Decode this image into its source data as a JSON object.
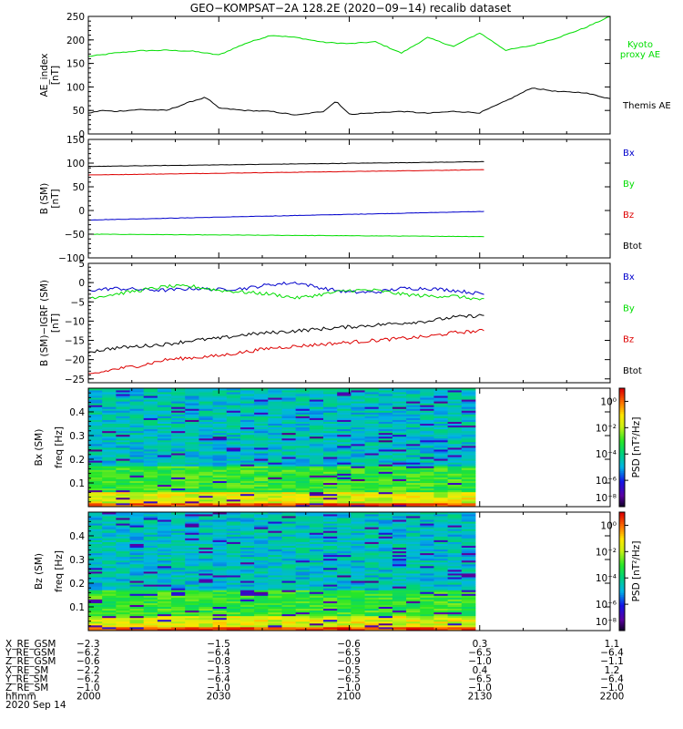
{
  "title": "GEO−KOMPSAT−2A 128.2E (2020−09−14) recalib dataset",
  "colors": {
    "black": "#000000",
    "blue": "#0000cc",
    "green": "#00dd00",
    "red": "#dd0000"
  },
  "chart_data": [
    {
      "type": "line",
      "panel": "ae",
      "ylabel": "AE_index",
      "yunit": "[nT]",
      "ylim": [
        0,
        250
      ],
      "yticks": [
        "0",
        "50",
        "100",
        "150",
        "200",
        "250"
      ],
      "xlim": [
        "20:00",
        "22:00"
      ],
      "series": [
        {
          "name": "Kyoto proxy AE",
          "label_lines": [
            "Kyoto",
            "proxy AE"
          ],
          "color": "#00dd00",
          "x": [
            "20:00",
            "20:03",
            "20:06",
            "20:12",
            "20:18",
            "20:24",
            "20:30",
            "20:36",
            "20:42",
            "20:48",
            "20:54",
            "21:00",
            "21:06",
            "21:12",
            "21:18",
            "21:24",
            "21:30",
            "21:36",
            "21:42",
            "21:48",
            "21:54",
            "22:00"
          ],
          "y": [
            165,
            168,
            172,
            177,
            178,
            176,
            168,
            192,
            210,
            205,
            195,
            192,
            196,
            172,
            205,
            186,
            215,
            178,
            188,
            205,
            225,
            250
          ]
        },
        {
          "name": "Themis AE",
          "label_lines": [
            "Themis AE"
          ],
          "color": "#000000",
          "x": [
            "20:00",
            "20:03",
            "20:06",
            "20:12",
            "20:18",
            "20:24",
            "20:27",
            "20:30",
            "20:36",
            "20:42",
            "20:48",
            "20:54",
            "20:57",
            "21:00",
            "21:06",
            "21:12",
            "21:18",
            "21:24",
            "21:30",
            "21:36",
            "21:42",
            "21:48",
            "21:54",
            "22:00"
          ],
          "y": [
            44,
            50,
            48,
            52,
            50,
            70,
            78,
            55,
            50,
            48,
            40,
            48,
            70,
            42,
            45,
            48,
            44,
            48,
            45,
            70,
            98,
            90,
            88,
            75
          ]
        }
      ]
    },
    {
      "type": "line",
      "panel": "b_sm",
      "ylabel": "B (SM)",
      "yunit": "[nT]",
      "ylim": [
        -100,
        150
      ],
      "yticks": [
        "−100",
        "−50",
        "0",
        "50",
        "100",
        "150"
      ],
      "xlim": [
        "20:00",
        "22:00"
      ],
      "series": [
        {
          "name": "Bx",
          "color": "#0000cc",
          "x": [
            "20:00",
            "21:31"
          ],
          "y": [
            -20,
            -2
          ]
        },
        {
          "name": "By",
          "color": "#00dd00",
          "x": [
            "20:00",
            "21:31"
          ],
          "y": [
            -50,
            -55
          ]
        },
        {
          "name": "Bz",
          "color": "#dd0000",
          "x": [
            "20:00",
            "21:31"
          ],
          "y": [
            75,
            86
          ]
        },
        {
          "name": "Btot",
          "color": "#000000",
          "x": [
            "20:00",
            "21:31"
          ],
          "y": [
            93,
            103
          ]
        }
      ]
    },
    {
      "type": "line",
      "panel": "b_igrf",
      "ylabel": "B (SM)−IGRF (SM)",
      "yunit": "[nT]",
      "ylim": [
        -26,
        5
      ],
      "yticks": [
        "−25",
        "−20",
        "−15",
        "−10",
        "−5",
        "0",
        "5"
      ],
      "xlim": [
        "20:00",
        "22:00"
      ],
      "series": [
        {
          "name": "Bx",
          "color": "#0000cc",
          "x": [
            "20:00",
            "20:06",
            "20:12",
            "20:18",
            "20:24",
            "20:30",
            "20:36",
            "20:42",
            "20:48",
            "20:54",
            "21:00",
            "21:06",
            "21:12",
            "21:18",
            "21:24",
            "21:31"
          ],
          "y": [
            -2,
            -1.5,
            -1.8,
            -2,
            -1.5,
            -1.8,
            -1.5,
            -0.5,
            0,
            -1.5,
            -2.5,
            -2.5,
            -1.5,
            -1.5,
            -2,
            -3
          ]
        },
        {
          "name": "By",
          "color": "#00dd00",
          "x": [
            "20:00",
            "20:06",
            "20:12",
            "20:18",
            "20:24",
            "20:30",
            "20:36",
            "20:42",
            "20:48",
            "20:54",
            "21:00",
            "21:06",
            "21:12",
            "21:18",
            "21:24",
            "21:31"
          ],
          "y": [
            -4,
            -3,
            -2,
            -1,
            -1,
            -2,
            -2.5,
            -3,
            -4,
            -3,
            -2,
            -2,
            -3,
            -3.5,
            -3.5,
            -4.5
          ]
        },
        {
          "name": "Bz",
          "color": "#dd0000",
          "x": [
            "20:00",
            "20:06",
            "20:12",
            "20:18",
            "20:24",
            "20:30",
            "20:36",
            "20:42",
            "20:48",
            "20:54",
            "21:00",
            "21:06",
            "21:12",
            "21:18",
            "21:24",
            "21:31"
          ],
          "y": [
            -24,
            -22.5,
            -21.5,
            -20,
            -19.5,
            -19,
            -18,
            -17,
            -16.5,
            -16,
            -15.5,
            -15,
            -14.5,
            -14,
            -13,
            -12.5
          ]
        },
        {
          "name": "Btot",
          "color": "#000000",
          "x": [
            "20:00",
            "20:06",
            "20:12",
            "20:18",
            "20:24",
            "20:30",
            "20:36",
            "20:42",
            "20:48",
            "20:54",
            "21:00",
            "21:06",
            "21:12",
            "21:18",
            "21:24",
            "21:31"
          ],
          "y": [
            -18,
            -17,
            -16.5,
            -16,
            -15,
            -14.5,
            -13.5,
            -13,
            -12.5,
            -12,
            -11.5,
            -11,
            -10.5,
            -10,
            -9,
            -8.5
          ]
        }
      ]
    },
    {
      "type": "heatmap",
      "panel": "bx_psd",
      "ylabel": "Bx (SM)",
      "ylabel2": "freq [Hz]",
      "ylim": [
        0,
        0.5
      ],
      "yticks": [
        "0.1",
        "0.2",
        "0.3",
        "0.4"
      ],
      "xlim": [
        "20:00",
        "22:00"
      ],
      "data_end": "21:29",
      "colorbar_label": "PSD [nT²/Hz]",
      "colorbar_range": [
        "10⁻⁸",
        "10¹"
      ],
      "colorbar_ticks": [
        "10⁰",
        "10⁻²",
        "10⁻⁴",
        "10⁻⁶"
      ]
    },
    {
      "type": "heatmap",
      "panel": "bz_psd",
      "ylabel": "Bz (SM)",
      "ylabel2": "freq [Hz]",
      "ylim": [
        0,
        0.5
      ],
      "yticks": [
        "0.1",
        "0.2",
        "0.3",
        "0.4"
      ],
      "xlim": [
        "20:00",
        "22:00"
      ],
      "data_end": "21:29",
      "colorbar_label": "PSD [nT²/Hz]",
      "colorbar_range": [
        "10⁻⁸",
        "10¹"
      ],
      "colorbar_ticks": [
        "10⁰",
        "10⁻²",
        "10⁻⁴",
        "10⁻⁶"
      ]
    }
  ],
  "ephemeris": {
    "rows": [
      {
        "label": "X_RE_GSM",
        "values": [
          "−2.3",
          "−1.5",
          "−0.6",
          "0.3",
          "1.1"
        ]
      },
      {
        "label": "Y_RE_GSM",
        "values": [
          "−6.2",
          "−6.4",
          "−6.5",
          "−6.5",
          "−6.4"
        ]
      },
      {
        "label": "Z_RE_GSM",
        "values": [
          "−0.6",
          "−0.8",
          "−0.9",
          "−1.0",
          "−1.1"
        ]
      },
      {
        "label": "X_RE_SM",
        "values": [
          "−2.2",
          "−1.3",
          "−0.5",
          "0.4",
          "1.2"
        ]
      },
      {
        "label": "Y_RE_SM",
        "values": [
          "−6.2",
          "−6.4",
          "−6.5",
          "−6.5",
          "−6.4"
        ]
      },
      {
        "label": "Z_RE_SM",
        "values": [
          "−1.0",
          "−1.0",
          "−1.0",
          "−1.0",
          "−1.0"
        ]
      },
      {
        "label": "hhmm",
        "values": [
          "2000",
          "2030",
          "2100",
          "2130",
          "2200"
        ]
      }
    ],
    "date": "2020 Sep 14"
  }
}
